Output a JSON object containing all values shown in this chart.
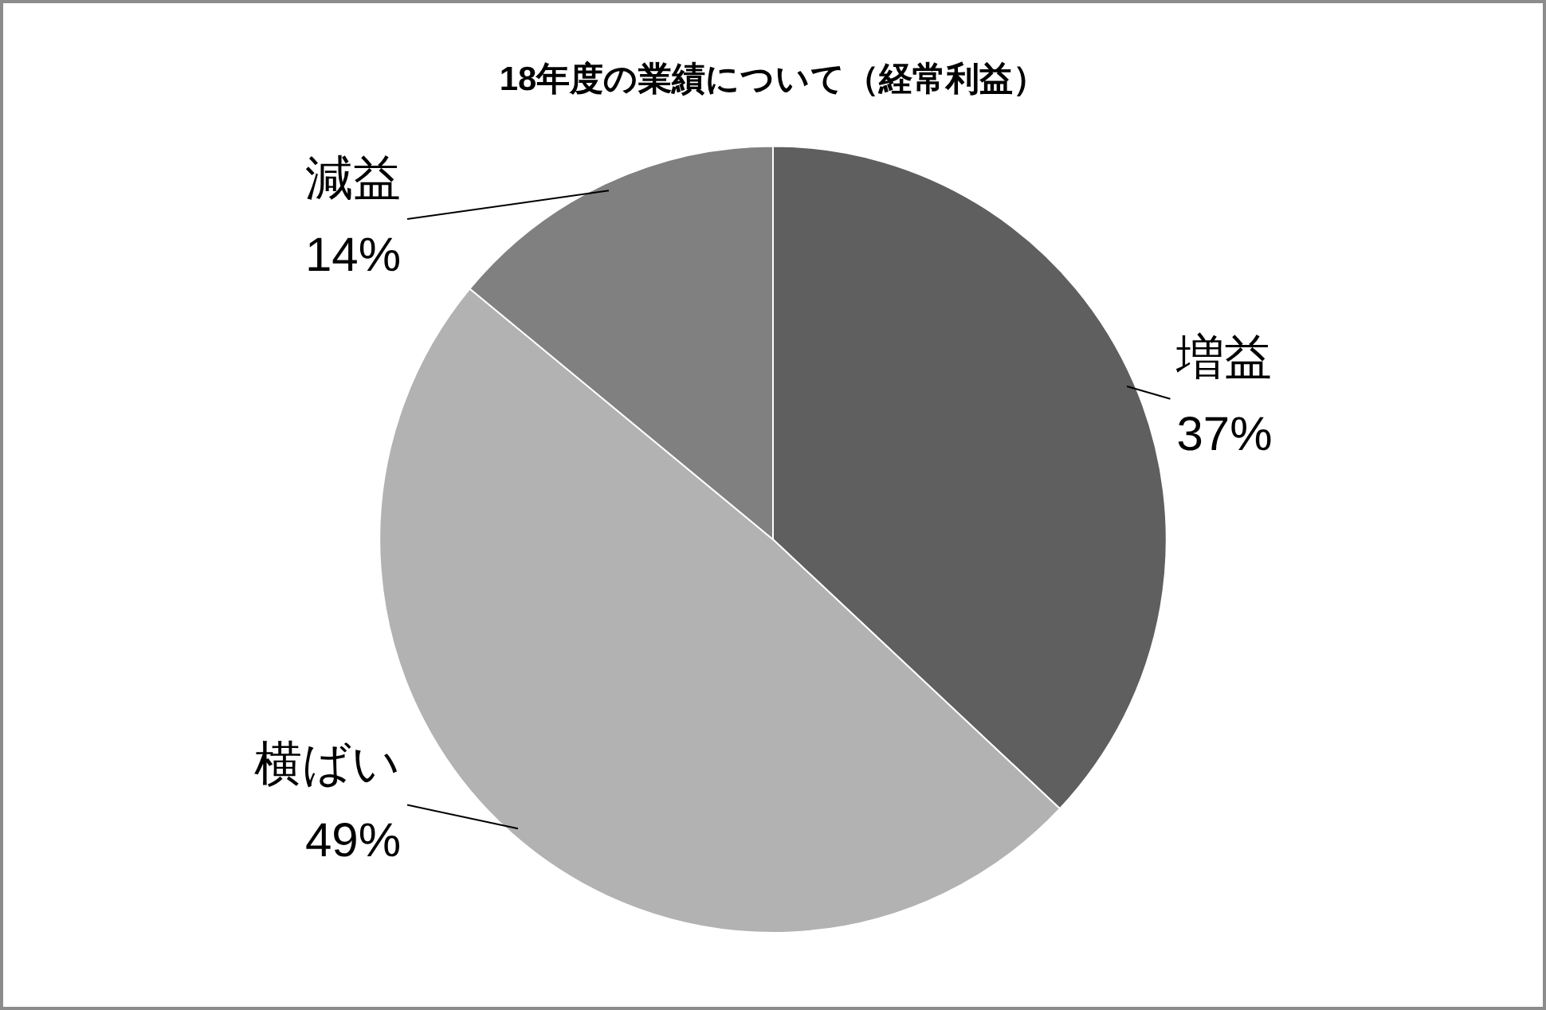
{
  "chart_data": {
    "type": "pie",
    "title": "18年度の業績について（経常利益）",
    "categories": [
      "増益",
      "横ばい",
      "減益"
    ],
    "values": [
      37,
      49,
      14
    ],
    "colors": [
      "#5f5f5f",
      "#b2b2b2",
      "#808080"
    ],
    "value_labels": [
      "37%",
      "49%",
      "14%"
    ],
    "legend": false
  }
}
